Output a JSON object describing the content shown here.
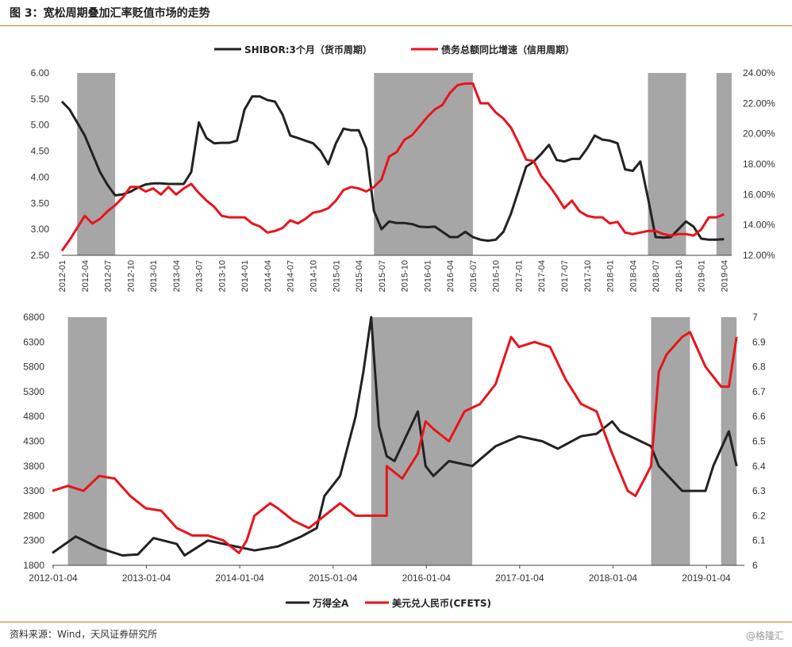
{
  "header": {
    "title": "图 3：宽松周期叠加汇率贬值市场的走势"
  },
  "footer": {
    "source": "资料来源：Wind，天风证券研究所",
    "watermark": "@格隆汇"
  },
  "colors": {
    "black_series": "#222222",
    "red_series": "#e8141c",
    "shade": "#a6a6a6",
    "rule": "#c8741e"
  },
  "chart_data": [
    {
      "type": "line",
      "legend": [
        "SHIBOR:3个月（货币周期）",
        "债务总额同比增速（信用周期）"
      ],
      "x_ticks": [
        "2012-01",
        "2012-04",
        "2012-07",
        "2012-10",
        "2013-01",
        "2013-04",
        "2013-07",
        "2013-10",
        "2014-01",
        "2014-04",
        "2014-07",
        "2014-10",
        "2015-01",
        "2015-04",
        "2015-07",
        "2015-10",
        "2016-01",
        "2016-04",
        "2016-07",
        "2016-10",
        "2017-01",
        "2017-04",
        "2017-07",
        "2017-10",
        "2018-01",
        "2018-04",
        "2018-07",
        "2018-10",
        "2019-01",
        "2019-04"
      ],
      "y_left_ticks": [
        "6.00",
        "5.50",
        "5.00",
        "4.50",
        "4.00",
        "3.50",
        "3.00",
        "2.50"
      ],
      "y_left_range": [
        2.5,
        6.0
      ],
      "y_right_ticks": [
        "24.00%",
        "22.00%",
        "20.00%",
        "18.00%",
        "16.00%",
        "14.00%",
        "12.00%"
      ],
      "y_right_range": [
        12,
        24
      ],
      "shaded_periods": [
        [
          "2012-03",
          "2012-08"
        ],
        [
          "2015-06",
          "2016-07"
        ],
        [
          "2018-06",
          "2018-11"
        ],
        [
          "2019-03",
          "2019-05"
        ]
      ],
      "series": [
        {
          "name": "SHIBOR:3个月（货币周期）",
          "axis": "left",
          "x": [
            "2012-01",
            "2012-02",
            "2012-03",
            "2012-04",
            "2012-05",
            "2012-06",
            "2012-07",
            "2012-08",
            "2012-09",
            "2012-10",
            "2012-11",
            "2012-12",
            "2013-01",
            "2013-02",
            "2013-03",
            "2013-04",
            "2013-05",
            "2013-06",
            "2013-07",
            "2013-08",
            "2013-09",
            "2013-10",
            "2013-11",
            "2013-12",
            "2014-01",
            "2014-02",
            "2014-03",
            "2014-04",
            "2014-05",
            "2014-06",
            "2014-07",
            "2014-08",
            "2014-09",
            "2014-10",
            "2014-11",
            "2014-12",
            "2015-01",
            "2015-02",
            "2015-03",
            "2015-04",
            "2015-05",
            "2015-06",
            "2015-07",
            "2015-08",
            "2015-09",
            "2015-10",
            "2015-11",
            "2015-12",
            "2016-01",
            "2016-02",
            "2016-03",
            "2016-04",
            "2016-05",
            "2016-06",
            "2016-07",
            "2016-08",
            "2016-09",
            "2016-10",
            "2016-11",
            "2016-12",
            "2017-01",
            "2017-02",
            "2017-03",
            "2017-04",
            "2017-05",
            "2017-06",
            "2017-07",
            "2017-08",
            "2017-09",
            "2017-10",
            "2017-11",
            "2017-12",
            "2018-01",
            "2018-02",
            "2018-03",
            "2018-04",
            "2018-05",
            "2018-06",
            "2018-07",
            "2018-08",
            "2018-09",
            "2018-10",
            "2018-11",
            "2018-12",
            "2019-01",
            "2019-02",
            "2019-03",
            "2019-04"
          ],
          "values": [
            5.45,
            5.3,
            5.05,
            4.8,
            4.45,
            4.1,
            3.85,
            3.65,
            3.67,
            3.72,
            3.8,
            3.86,
            3.88,
            3.88,
            3.87,
            3.87,
            3.87,
            4.1,
            5.05,
            4.75,
            4.65,
            4.66,
            4.66,
            4.7,
            5.3,
            5.55,
            5.55,
            5.48,
            5.45,
            5.2,
            4.8,
            4.75,
            4.7,
            4.65,
            4.5,
            4.25,
            4.65,
            4.93,
            4.9,
            4.9,
            4.55,
            3.35,
            3.0,
            3.15,
            3.12,
            3.12,
            3.1,
            3.05,
            3.04,
            3.05,
            2.95,
            2.85,
            2.85,
            2.95,
            2.85,
            2.8,
            2.78,
            2.8,
            2.95,
            3.3,
            3.75,
            4.2,
            4.3,
            4.45,
            4.62,
            4.33,
            4.3,
            4.35,
            4.35,
            4.55,
            4.8,
            4.72,
            4.7,
            4.65,
            4.15,
            4.12,
            4.3,
            3.6,
            2.85,
            2.84,
            2.85,
            3.0,
            3.15,
            3.05,
            2.82,
            2.8,
            2.8,
            2.81
          ]
        },
        {
          "name": "债务总额同比增速（信用周期）",
          "axis": "right",
          "x": [
            "2012-01",
            "2012-02",
            "2012-03",
            "2012-04",
            "2012-05",
            "2012-06",
            "2012-07",
            "2012-08",
            "2012-09",
            "2012-10",
            "2012-11",
            "2012-12",
            "2013-01",
            "2013-02",
            "2013-03",
            "2013-04",
            "2013-05",
            "2013-06",
            "2013-07",
            "2013-08",
            "2013-09",
            "2013-10",
            "2013-11",
            "2013-12",
            "2014-01",
            "2014-02",
            "2014-03",
            "2014-04",
            "2014-05",
            "2014-06",
            "2014-07",
            "2014-08",
            "2014-09",
            "2014-10",
            "2014-11",
            "2014-12",
            "2015-01",
            "2015-02",
            "2015-03",
            "2015-04",
            "2015-05",
            "2015-06",
            "2015-07",
            "2015-08",
            "2015-09",
            "2015-10",
            "2015-11",
            "2015-12",
            "2016-01",
            "2016-02",
            "2016-03",
            "2016-04",
            "2016-05",
            "2016-06",
            "2016-07",
            "2016-08",
            "2016-09",
            "2016-10",
            "2016-11",
            "2016-12",
            "2017-01",
            "2017-02",
            "2017-03",
            "2017-04",
            "2017-05",
            "2017-06",
            "2017-07",
            "2017-08",
            "2017-09",
            "2017-10",
            "2017-11",
            "2017-12",
            "2018-01",
            "2018-02",
            "2018-03",
            "2018-04",
            "2018-05",
            "2018-06",
            "2018-07",
            "2018-08",
            "2018-09",
            "2018-10",
            "2018-11",
            "2018-12",
            "2019-01",
            "2019-02",
            "2019-03",
            "2019-04"
          ],
          "values": [
            12.3,
            13.0,
            13.8,
            14.6,
            14.1,
            14.4,
            14.9,
            15.3,
            15.8,
            16.5,
            16.5,
            16.2,
            16.4,
            16.0,
            16.5,
            16.0,
            16.4,
            16.7,
            16.1,
            15.6,
            15.2,
            14.6,
            14.5,
            14.5,
            14.5,
            14.1,
            13.9,
            13.5,
            13.6,
            13.8,
            14.3,
            14.1,
            14.4,
            14.8,
            14.9,
            15.1,
            15.6,
            16.3,
            16.5,
            16.4,
            16.2,
            16.5,
            17.0,
            18.5,
            18.8,
            19.6,
            19.9,
            20.5,
            21.1,
            21.6,
            21.9,
            22.7,
            23.2,
            23.3,
            23.3,
            22.0,
            22.0,
            21.4,
            21.0,
            20.4,
            19.4,
            18.3,
            18.2,
            17.2,
            16.6,
            15.9,
            15.1,
            15.6,
            14.9,
            14.6,
            14.5,
            14.5,
            14.1,
            14.2,
            13.5,
            13.4,
            13.5,
            13.6,
            13.6,
            13.4,
            13.3,
            13.4,
            13.4,
            13.3,
            13.7,
            14.5,
            14.5,
            14.7
          ]
        }
      ]
    },
    {
      "type": "line",
      "legend": [
        "万得全A",
        "美元兑人民币(CFETS)"
      ],
      "x_ticks": [
        "2012-01-04",
        "2013-01-04",
        "2014-01-04",
        "2015-01-04",
        "2016-01-04",
        "2017-01-04",
        "2018-01-04",
        "2019-01-04"
      ],
      "y_left_ticks": [
        "6800",
        "6300",
        "5800",
        "5300",
        "4800",
        "4300",
        "3800",
        "3300",
        "2800",
        "2300",
        "1800"
      ],
      "y_left_range": [
        1800,
        6800
      ],
      "y_right_ticks": [
        "7",
        "6.9",
        "6.8",
        "6.7",
        "6.6",
        "6.5",
        "6.4",
        "6.3",
        "6.2",
        "6.1",
        "6"
      ],
      "y_right_range": [
        6.0,
        7.0
      ],
      "shaded_periods": [
        [
          "2012-03",
          "2012-08"
        ],
        [
          "2015-06",
          "2016-07"
        ],
        [
          "2018-06",
          "2018-11"
        ],
        [
          "2019-03",
          "2019-05"
        ]
      ],
      "series": [
        {
          "name": "万得全A",
          "axis": "left",
          "x": [
            "2012-01",
            "2012-04",
            "2012-07",
            "2012-10",
            "2012-12",
            "2013-02",
            "2013-05",
            "2013-06",
            "2013-09",
            "2013-12",
            "2014-03",
            "2014-06",
            "2014-09",
            "2014-11",
            "2014-12",
            "2015-02",
            "2015-04",
            "2015-05",
            "2015-06",
            "2015-07",
            "2015-08",
            "2015-09",
            "2015-12",
            "2016-01",
            "2016-02",
            "2016-04",
            "2016-07",
            "2016-10",
            "2017-01",
            "2017-04",
            "2017-06",
            "2017-09",
            "2017-11",
            "2018-01",
            "2018-02",
            "2018-04",
            "2018-06",
            "2018-07",
            "2018-10",
            "2018-12",
            "2019-01",
            "2019-02",
            "2019-04",
            "2019-05"
          ],
          "values": [
            2050,
            2380,
            2150,
            2000,
            2020,
            2350,
            2230,
            2000,
            2300,
            2200,
            2100,
            2180,
            2380,
            2550,
            3200,
            3600,
            4800,
            5700,
            6800,
            4600,
            4000,
            3900,
            4900,
            3800,
            3600,
            3900,
            3800,
            4200,
            4400,
            4300,
            4150,
            4400,
            4450,
            4700,
            4500,
            4350,
            4200,
            3800,
            3300,
            3300,
            3300,
            3800,
            4500,
            3800
          ]
        },
        {
          "name": "美元兑人民币(CFETS)",
          "axis": "right",
          "x": [
            "2012-01",
            "2012-03",
            "2012-05",
            "2012-07",
            "2012-09",
            "2012-11",
            "2013-01",
            "2013-03",
            "2013-05",
            "2013-07",
            "2013-09",
            "2013-11",
            "2014-01",
            "2014-02",
            "2014-03",
            "2014-05",
            "2014-06",
            "2014-08",
            "2014-10",
            "2014-12",
            "2015-02",
            "2015-04",
            "2015-06",
            "2015-08",
            "2015-08",
            "2015-10",
            "2015-12",
            "2016-01",
            "2016-02",
            "2016-04",
            "2016-06",
            "2016-08",
            "2016-10",
            "2016-12",
            "2017-01",
            "2017-03",
            "2017-05",
            "2017-07",
            "2017-09",
            "2017-11",
            "2018-01",
            "2018-03",
            "2018-04",
            "2018-06",
            "2018-07",
            "2018-08",
            "2018-10",
            "2018-11",
            "2019-01",
            "2019-03",
            "2019-04",
            "2019-05"
          ],
          "values": [
            6.3,
            6.32,
            6.3,
            6.36,
            6.35,
            6.28,
            6.23,
            6.22,
            6.15,
            6.12,
            6.12,
            6.1,
            6.05,
            6.1,
            6.2,
            6.25,
            6.23,
            6.18,
            6.15,
            6.2,
            6.25,
            6.2,
            6.2,
            6.2,
            6.4,
            6.35,
            6.45,
            6.58,
            6.55,
            6.5,
            6.62,
            6.65,
            6.73,
            6.92,
            6.88,
            6.9,
            6.88,
            6.75,
            6.65,
            6.62,
            6.45,
            6.3,
            6.28,
            6.4,
            6.78,
            6.85,
            6.92,
            6.94,
            6.8,
            6.72,
            6.72,
            6.92
          ]
        }
      ]
    }
  ]
}
